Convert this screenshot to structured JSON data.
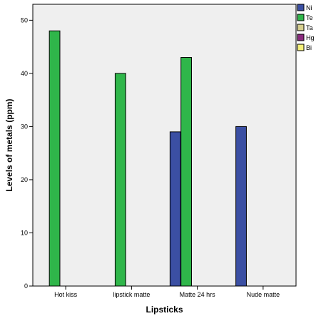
{
  "chart_data": {
    "type": "bar",
    "title": "",
    "xlabel": "Lipsticks",
    "ylabel": "Levels of metals (ppm)",
    "ylim": [
      0,
      53
    ],
    "yticks": [
      0,
      10,
      20,
      30,
      40,
      50
    ],
    "grid": false,
    "legend_position": "top-right",
    "categories": [
      "Hot kiss",
      "lipstick matte",
      "Matte 24 hrs",
      "Nude matte"
    ],
    "series": [
      {
        "name": "Ni",
        "color": "#3b4fa3",
        "values": [
          0,
          0,
          29,
          30
        ]
      },
      {
        "name": "Te",
        "color": "#2fb64a",
        "values": [
          48,
          40,
          43,
          0
        ]
      },
      {
        "name": "Ta",
        "color": "#d6cf8f",
        "values": [
          0,
          0,
          0,
          0
        ]
      },
      {
        "name": "Hg",
        "color": "#8a2a7e",
        "values": [
          0,
          0,
          0,
          0
        ]
      },
      {
        "name": "Bi",
        "color": "#f5f07a",
        "values": [
          0,
          0,
          0,
          0
        ]
      }
    ],
    "legend_labels": [
      "Ni",
      "Te",
      "Ta",
      "Hg",
      "Bi"
    ]
  }
}
